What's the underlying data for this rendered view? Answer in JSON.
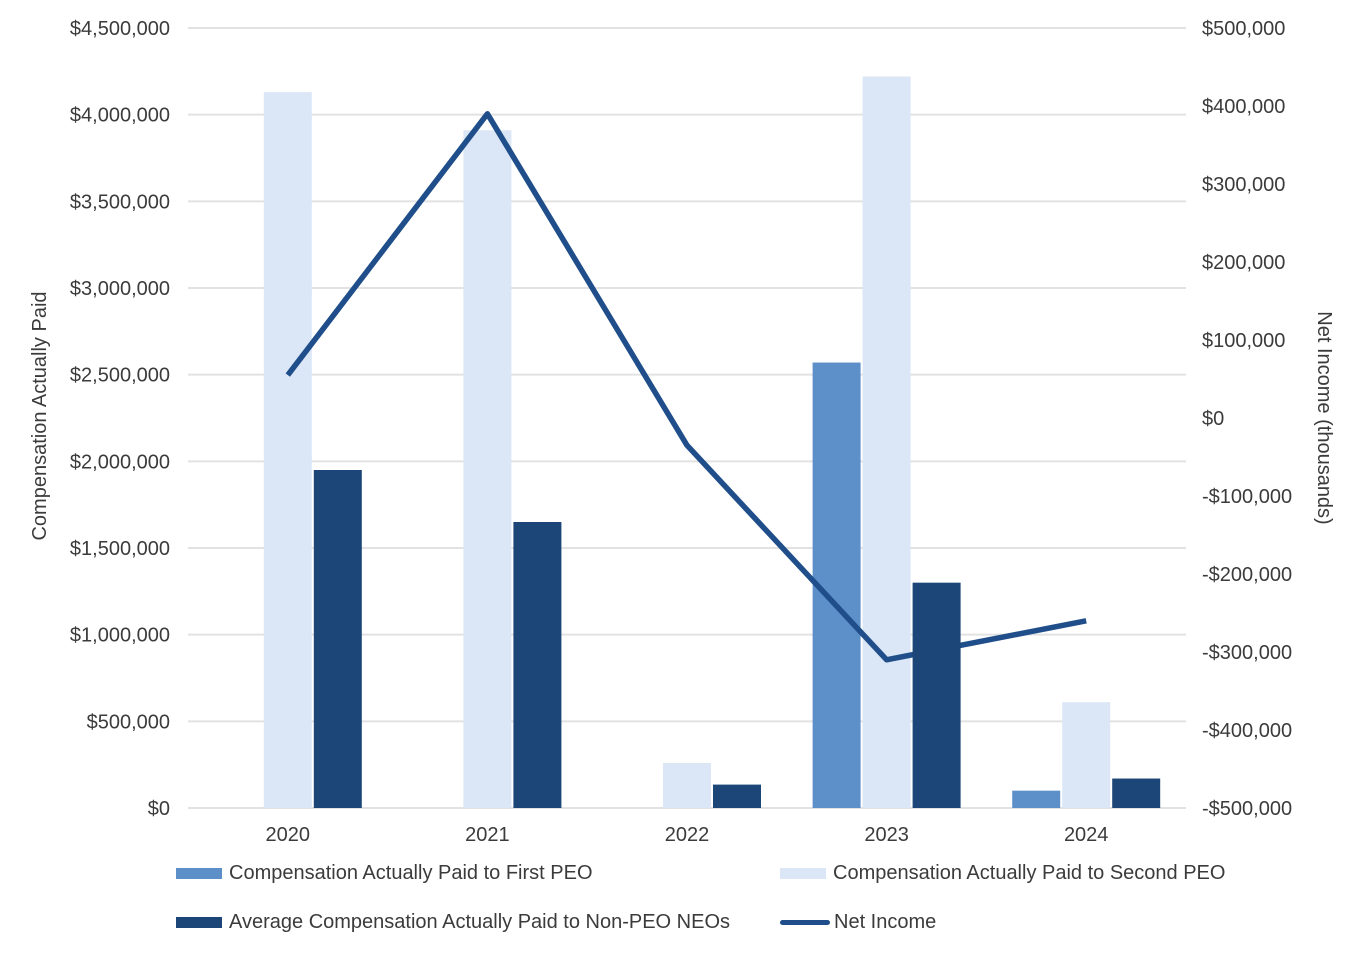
{
  "chart_data": {
    "type": "combo-bar-line",
    "title": "",
    "categories": [
      "2020",
      "2021",
      "2022",
      "2023",
      "2024"
    ],
    "series": [
      {
        "key": "first-peo",
        "name": "Compensation Actually Paid to First PEO",
        "type": "bar",
        "axis": "left",
        "color": "#5d90c9",
        "values": [
          null,
          null,
          null,
          2570000,
          100000
        ]
      },
      {
        "key": "second-peo",
        "name": "Compensation Actually Paid to Second PEO",
        "type": "bar",
        "axis": "left",
        "color": "#dbe6f6",
        "values": [
          4130000,
          3910000,
          260000,
          4220000,
          610000
        ]
      },
      {
        "key": "non-peo-neos",
        "name": "Average Compensation Actually Paid to Non-PEO NEOs",
        "type": "bar",
        "axis": "left",
        "color": "#1d4678",
        "values": [
          1950000,
          1650000,
          135000,
          1300000,
          170000
        ]
      },
      {
        "key": "net-income",
        "name": "Net Income",
        "type": "line",
        "axis": "right",
        "color": "#1f4e8a",
        "values": [
          55000,
          390000,
          -35000,
          -310000,
          -260000
        ]
      }
    ],
    "left_axis": {
      "title": "Compensation Actually Paid",
      "min": 0,
      "max": 4500000,
      "step": 500000,
      "tick_labels": [
        "$4,500,000",
        "$4,000,000",
        "$3,500,000",
        "$3,000,000",
        "$2,500,000",
        "$2,000,000",
        "$1,500,000",
        "$1,000,000",
        "$500,000",
        "$0"
      ]
    },
    "right_axis": {
      "title": "Net Income (thousands)",
      "min": -500000,
      "max": 500000,
      "step": 100000,
      "tick_labels": [
        "$500,000",
        "$400,000",
        "$300,000",
        "$200,000",
        "$100,000",
        "$0",
        "-$100,000",
        "-$200,000",
        "-$300,000",
        "-$400,000",
        "-$500,000"
      ]
    },
    "grid": true,
    "legend_position": "bottom",
    "colors": {
      "gridline": "#e2e2e2",
      "text": "#3b3b3b"
    }
  }
}
